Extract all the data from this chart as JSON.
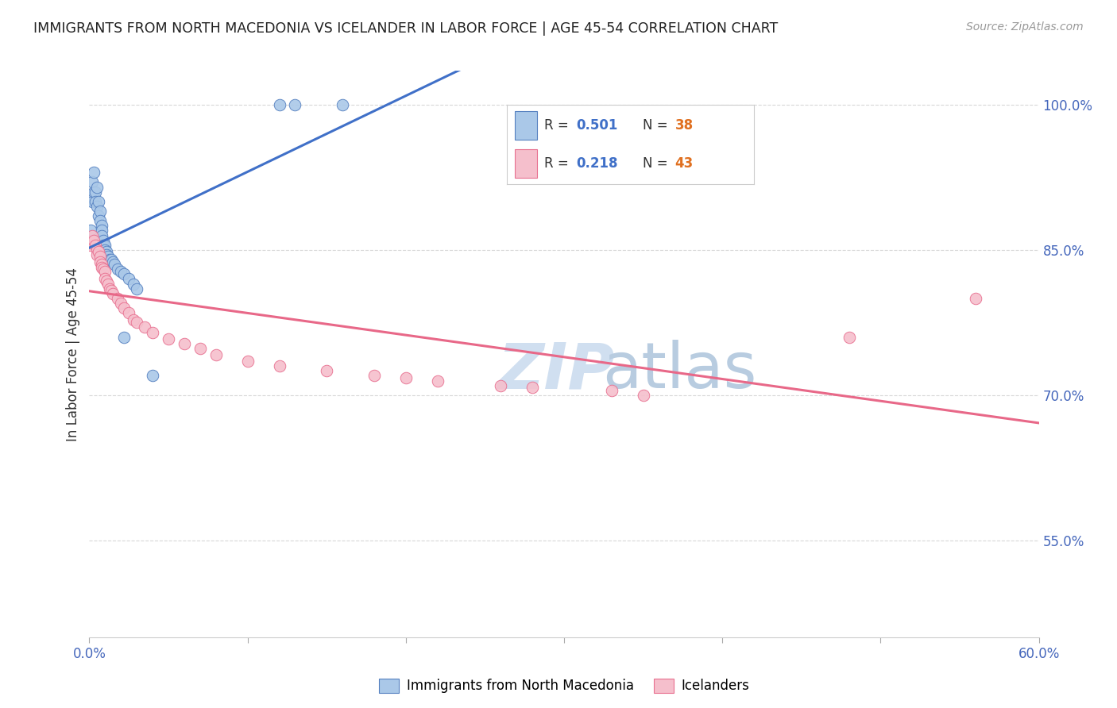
{
  "title": "IMMIGRANTS FROM NORTH MACEDONIA VS ICELANDER IN LABOR FORCE | AGE 45-54 CORRELATION CHART",
  "source": "Source: ZipAtlas.com",
  "ylabel": "In Labor Force | Age 45-54",
  "xlim": [
    0.0,
    0.6
  ],
  "ylim": [
    0.45,
    1.035
  ],
  "xticks": [
    0.0,
    0.1,
    0.2,
    0.3,
    0.4,
    0.5,
    0.6
  ],
  "xticklabels": [
    "0.0%",
    "",
    "",
    "",
    "",
    "",
    "60.0%"
  ],
  "yticks": [
    0.55,
    0.7,
    0.85,
    1.0
  ],
  "yticklabels": [
    "55.0%",
    "70.0%",
    "85.0%",
    "100.0%"
  ],
  "blue_R": 0.501,
  "blue_N": 38,
  "pink_R": 0.218,
  "pink_N": 43,
  "blue_color": "#aac8e8",
  "pink_color": "#f5bfcc",
  "blue_edge_color": "#5580c0",
  "pink_edge_color": "#e87090",
  "blue_line_color": "#4070c8",
  "pink_line_color": "#e86888",
  "legend_label_blue": "Immigrants from North Macedonia",
  "legend_label_pink": "Icelanders",
  "blue_scatter_x": [
    0.001,
    0.002,
    0.002,
    0.003,
    0.003,
    0.004,
    0.004,
    0.005,
    0.005,
    0.006,
    0.006,
    0.007,
    0.007,
    0.008,
    0.008,
    0.008,
    0.009,
    0.009,
    0.01,
    0.01,
    0.011,
    0.011,
    0.012,
    0.013,
    0.014,
    0.015,
    0.016,
    0.018,
    0.02,
    0.022,
    0.025,
    0.028,
    0.03,
    0.022,
    0.04,
    0.12,
    0.13,
    0.16
  ],
  "blue_scatter_y": [
    0.87,
    0.92,
    0.9,
    0.93,
    0.91,
    0.91,
    0.9,
    0.915,
    0.895,
    0.9,
    0.885,
    0.89,
    0.88,
    0.875,
    0.87,
    0.865,
    0.86,
    0.855,
    0.855,
    0.85,
    0.848,
    0.845,
    0.843,
    0.84,
    0.84,
    0.838,
    0.835,
    0.83,
    0.828,
    0.825,
    0.82,
    0.815,
    0.81,
    0.76,
    0.72,
    1.0,
    1.0,
    1.0
  ],
  "pink_scatter_x": [
    0.001,
    0.002,
    0.003,
    0.004,
    0.005,
    0.005,
    0.006,
    0.007,
    0.007,
    0.008,
    0.008,
    0.009,
    0.01,
    0.01,
    0.011,
    0.012,
    0.013,
    0.014,
    0.015,
    0.018,
    0.02,
    0.022,
    0.025,
    0.028,
    0.03,
    0.035,
    0.04,
    0.05,
    0.06,
    0.07,
    0.08,
    0.1,
    0.12,
    0.15,
    0.18,
    0.2,
    0.22,
    0.26,
    0.28,
    0.33,
    0.35,
    0.48,
    0.56
  ],
  "pink_scatter_y": [
    0.855,
    0.865,
    0.86,
    0.855,
    0.85,
    0.845,
    0.848,
    0.843,
    0.838,
    0.835,
    0.832,
    0.83,
    0.828,
    0.82,
    0.818,
    0.815,
    0.81,
    0.808,
    0.805,
    0.8,
    0.795,
    0.79,
    0.785,
    0.778,
    0.775,
    0.77,
    0.765,
    0.758,
    0.753,
    0.748,
    0.742,
    0.735,
    0.73,
    0.725,
    0.72,
    0.718,
    0.715,
    0.71,
    0.708,
    0.705,
    0.7,
    0.76,
    0.8
  ],
  "watermark_zip": "ZIP",
  "watermark_atlas": "atlas",
  "background_color": "#ffffff",
  "grid_color": "#d8d8d8"
}
